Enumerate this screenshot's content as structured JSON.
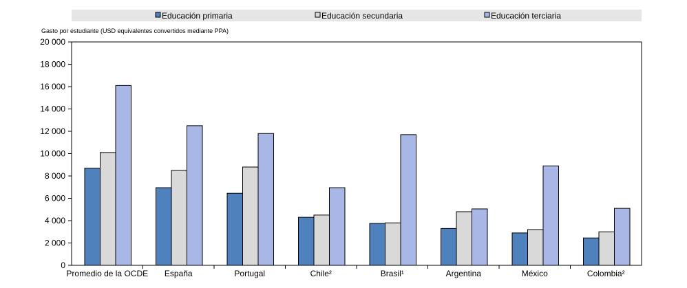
{
  "chart_data": {
    "type": "bar",
    "ylabel": "Gasto por estudiante (USD equivalentes convertidos mediante PPA)",
    "xlabel": "",
    "ylim": [
      0,
      20000
    ],
    "yticks": [
      0,
      2000,
      4000,
      6000,
      8000,
      10000,
      12000,
      14000,
      16000,
      18000,
      20000
    ],
    "ytick_labels": [
      "0",
      "2 000",
      "4 000",
      "6 000",
      "8 000",
      "10 000",
      "12 000",
      "14 000",
      "16 000",
      "18 000",
      "20 000"
    ],
    "grid": false,
    "legend_position": "top",
    "categories": [
      "Promedio de la OCDE",
      "España",
      "Portugal",
      "Chile²",
      "Brasil¹",
      "Argentina",
      "México",
      "Colombia²"
    ],
    "series": [
      {
        "name": "Educación primaria",
        "color": "#4F81BD",
        "values": [
          8700,
          6950,
          6450,
          4300,
          3750,
          3300,
          2900,
          2450
        ]
      },
      {
        "name": "Educación secundaria",
        "color": "#D9D9D9",
        "values": [
          10100,
          8500,
          8800,
          4500,
          3800,
          4800,
          3200,
          3000
        ]
      },
      {
        "name": "Educación terciaria",
        "color": "#A9B7E6",
        "values": [
          16100,
          12500,
          11800,
          6950,
          11700,
          5050,
          8900,
          5100
        ]
      }
    ]
  }
}
